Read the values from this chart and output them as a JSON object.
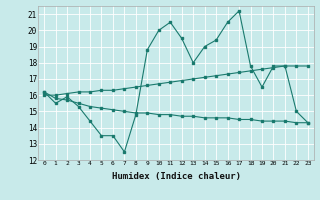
{
  "title": "",
  "xlabel": "Humidex (Indice chaleur)",
  "ylabel": "",
  "background_color": "#c8eaea",
  "line_color": "#1a7a6e",
  "xlim": [
    -0.5,
    23.5
  ],
  "ylim": [
    12,
    21.5
  ],
  "xticks": [
    0,
    1,
    2,
    3,
    4,
    5,
    6,
    7,
    8,
    9,
    10,
    11,
    12,
    13,
    14,
    15,
    16,
    17,
    18,
    19,
    20,
    21,
    22,
    23
  ],
  "yticks": [
    12,
    13,
    14,
    15,
    16,
    17,
    18,
    19,
    20,
    21
  ],
  "line1": {
    "x": [
      0,
      1,
      2,
      3,
      4,
      5,
      6,
      7,
      8,
      9,
      10,
      11,
      12,
      13,
      14,
      15,
      16,
      17,
      18,
      19,
      20,
      21,
      22,
      23
    ],
    "y": [
      16.2,
      15.5,
      15.9,
      15.3,
      14.4,
      13.5,
      13.5,
      12.5,
      14.8,
      18.8,
      20.0,
      20.5,
      19.5,
      18.0,
      19.0,
      19.4,
      20.5,
      21.2,
      17.8,
      16.5,
      17.8,
      17.8,
      15.0,
      14.3
    ]
  },
  "line2": {
    "x": [
      0,
      1,
      2,
      3,
      4,
      5,
      6,
      7,
      8,
      9,
      10,
      11,
      12,
      13,
      14,
      15,
      16,
      17,
      18,
      19,
      20,
      21,
      22,
      23
    ],
    "y": [
      16.0,
      16.0,
      16.1,
      16.2,
      16.2,
      16.3,
      16.3,
      16.4,
      16.5,
      16.6,
      16.7,
      16.8,
      16.9,
      17.0,
      17.1,
      17.2,
      17.3,
      17.4,
      17.5,
      17.6,
      17.7,
      17.8,
      17.8,
      17.8
    ]
  },
  "line3": {
    "x": [
      0,
      1,
      2,
      3,
      4,
      5,
      6,
      7,
      8,
      9,
      10,
      11,
      12,
      13,
      14,
      15,
      16,
      17,
      18,
      19,
      20,
      21,
      22,
      23
    ],
    "y": [
      16.2,
      15.8,
      15.7,
      15.5,
      15.3,
      15.2,
      15.1,
      15.0,
      14.9,
      14.9,
      14.8,
      14.8,
      14.7,
      14.7,
      14.6,
      14.6,
      14.6,
      14.5,
      14.5,
      14.4,
      14.4,
      14.4,
      14.3,
      14.3
    ]
  }
}
